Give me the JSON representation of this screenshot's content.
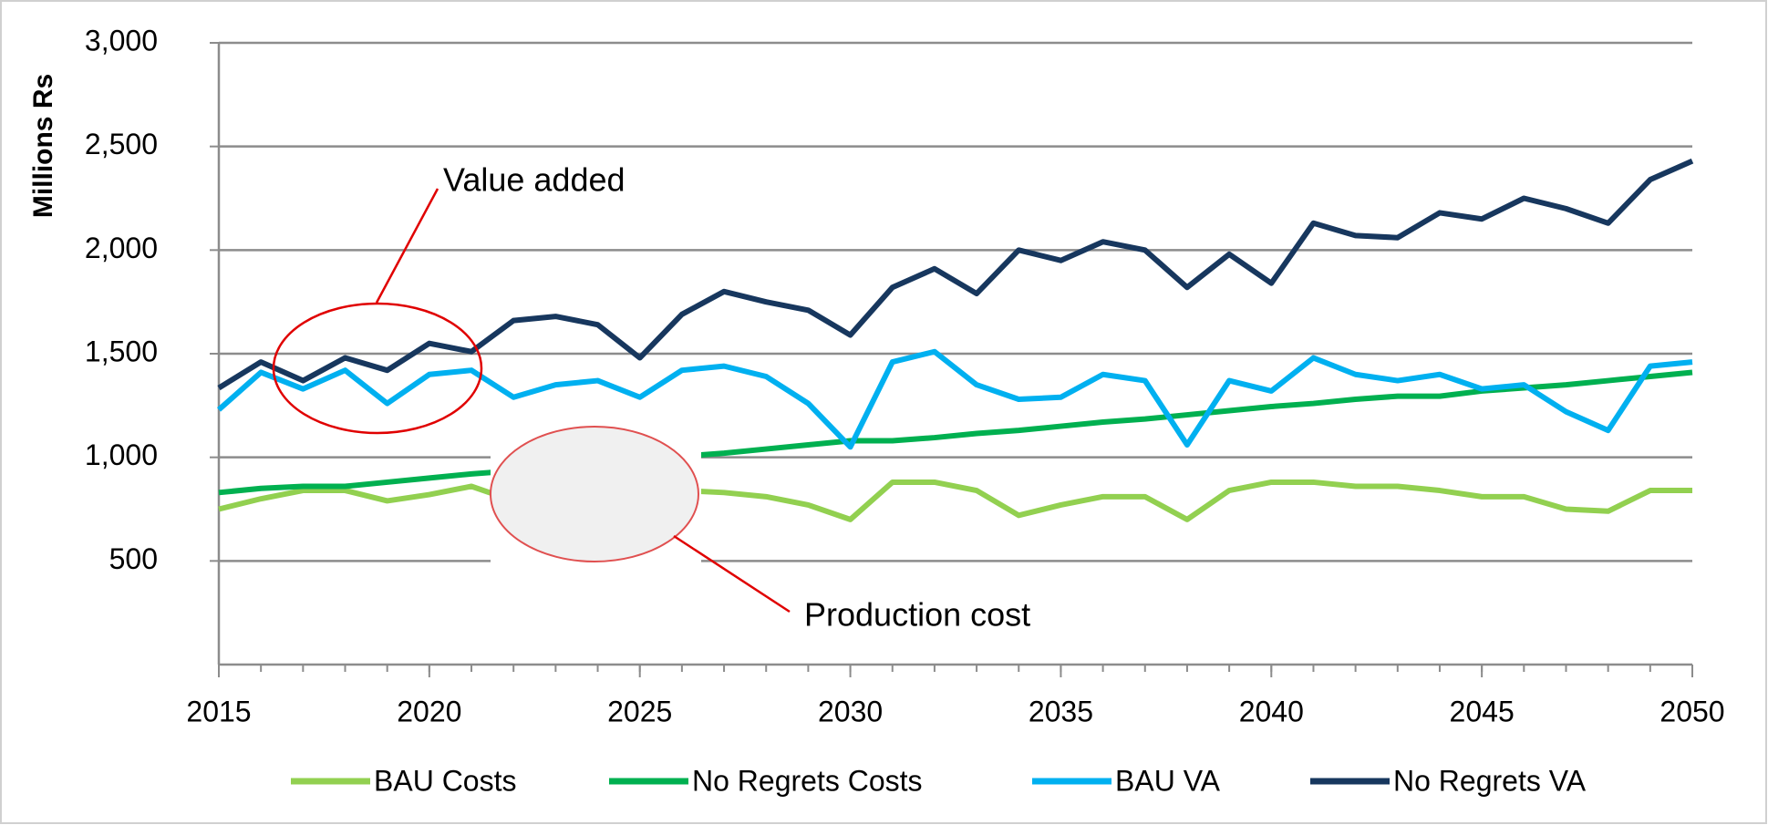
{
  "chart_data": {
    "type": "line",
    "y_label": "Millions Rs",
    "annotations": [
      "Value added",
      "Production cost"
    ],
    "x": [
      2015,
      2016,
      2017,
      2018,
      2019,
      2020,
      2021,
      2022,
      2023,
      2024,
      2025,
      2026,
      2027,
      2028,
      2029,
      2030,
      2031,
      2032,
      2033,
      2034,
      2035,
      2036,
      2037,
      2038,
      2039,
      2040,
      2041,
      2042,
      2043,
      2044,
      2045,
      2046,
      2047,
      2048,
      2049,
      2050
    ],
    "xlim": [
      2015,
      2050
    ],
    "xticks": [
      2015,
      2020,
      2025,
      2030,
      2035,
      2040,
      2045,
      2050
    ],
    "ylim": [
      0,
      3000
    ],
    "yticks": [
      500,
      {
        "value": 1000,
        "label": "1,000"
      },
      {
        "value": 1500,
        "label": "1,500"
      },
      {
        "value": 2000,
        "label": "2,000"
      },
      {
        "value": 2500,
        "label": "2,500"
      },
      {
        "value": 3000,
        "label": "3,000"
      }
    ],
    "grid": true,
    "legend": "bottom",
    "series": [
      {
        "name": "BAU Costs",
        "color": "#92d050",
        "values": [
          750,
          800,
          840,
          840,
          790,
          820,
          860,
          790,
          800,
          810,
          820,
          840,
          830,
          810,
          770,
          700,
          880,
          880,
          840,
          720,
          770,
          810,
          810,
          700,
          840,
          880,
          880,
          860,
          860,
          840,
          810,
          810,
          750,
          740,
          840,
          840
        ]
      },
      {
        "name": "No Regrets Costs",
        "color": "#00b050",
        "values": [
          830,
          850,
          860,
          860,
          880,
          900,
          920,
          935,
          950,
          970,
          990,
          1005,
          1020,
          1040,
          1060,
          1080,
          1080,
          1095,
          1115,
          1130,
          1150,
          1170,
          1185,
          1205,
          1225,
          1245,
          1260,
          1280,
          1295,
          1295,
          1320,
          1335,
          1350,
          1370,
          1390,
          1410
        ]
      },
      {
        "name": "BAU VA",
        "color": "#00b0f0",
        "values": [
          1230,
          1410,
          1330,
          1420,
          1260,
          1400,
          1420,
          1290,
          1350,
          1370,
          1290,
          1420,
          1440,
          1390,
          1260,
          1050,
          1460,
          1510,
          1350,
          1280,
          1290,
          1400,
          1370,
          1060,
          1370,
          1320,
          1480,
          1400,
          1370,
          1400,
          1330,
          1350,
          1220,
          1130,
          1440,
          1460
        ]
      },
      {
        "name": "No Regrets VA",
        "color": "#17375e",
        "values": [
          1335,
          1460,
          1370,
          1480,
          1420,
          1550,
          1510,
          1660,
          1680,
          1640,
          1480,
          1690,
          1800,
          1750,
          1710,
          1590,
          1820,
          1910,
          1790,
          2000,
          1950,
          2040,
          2000,
          1820,
          1980,
          1840,
          2130,
          2070,
          2060,
          2180,
          2150,
          2250,
          2200,
          2130,
          2340,
          2430
        ]
      }
    ]
  }
}
